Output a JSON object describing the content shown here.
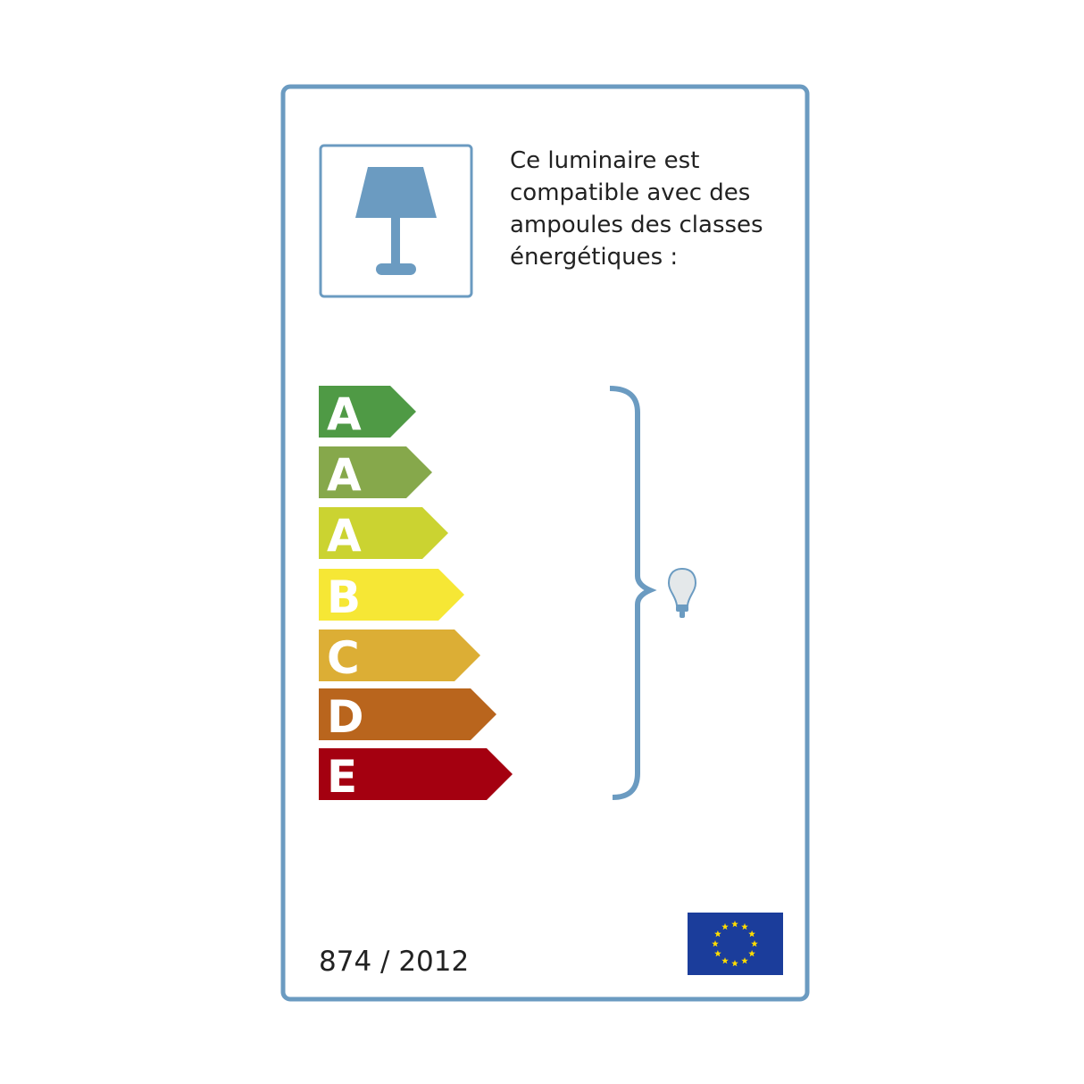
{
  "label": {
    "description_lines": [
      "Ce luminaire est",
      "compatible avec des",
      "ampoules des classes",
      "énergétiques :"
    ],
    "regulation": "874 / 2012",
    "frame_color": "#6b9bc1",
    "classes": [
      {
        "letter": "A",
        "color": "#4f9a45"
      },
      {
        "letter": "A",
        "color": "#86a84b"
      },
      {
        "letter": "A",
        "color": "#cbd331"
      },
      {
        "letter": "B",
        "color": "#f6e735"
      },
      {
        "letter": "C",
        "color": "#dcae35"
      },
      {
        "letter": "D",
        "color": "#b9651d"
      },
      {
        "letter": "E",
        "color": "#a40010"
      }
    ],
    "icons": [
      "table-lamp-icon",
      "light-bulb-icon",
      "eu-flag-icon"
    ],
    "eu_flag_color": "#1b3d9b"
  }
}
